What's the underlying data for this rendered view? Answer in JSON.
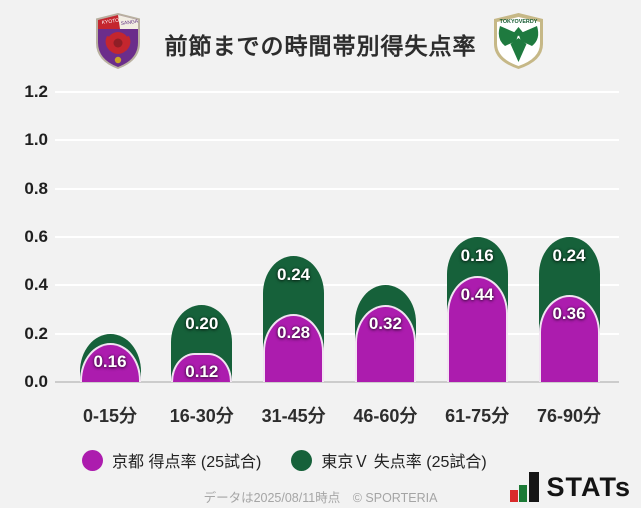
{
  "header": {
    "title": "前節までの時間帯別得失点率",
    "kyoto_logo": {
      "name": "京都サンガF.C.",
      "band_left_text": "KYOTO",
      "band_right_text": "SANGA"
    },
    "verdy_logo": {
      "name": "東京ヴェルディ",
      "banner_text": "TOKYOVERDY"
    }
  },
  "chart_data": {
    "type": "bar",
    "stacked": true,
    "title": "前節までの時間帯別得失点率",
    "categories": [
      "0-15分",
      "16-30分",
      "31-45分",
      "46-60分",
      "61-75分",
      "76-90分"
    ],
    "series": [
      {
        "name": "京都 得点率 (25試合)",
        "color": "#ac1cae",
        "values": [
          0.16,
          0.12,
          0.28,
          0.32,
          0.44,
          0.36
        ],
        "labels": [
          "0.16",
          "0.12",
          "0.28",
          "0.32",
          "0.44",
          "0.36"
        ]
      },
      {
        "name": "東京Ｖ 失点率 (25試合)",
        "color": "#16613a",
        "values": [
          0.04,
          0.2,
          0.24,
          0.08,
          0.16,
          0.24
        ],
        "labels": [
          "",
          "0.20",
          "0.24",
          "",
          "0.16",
          "0.24"
        ]
      }
    ],
    "stack_totals": [
      0.2,
      0.32,
      0.52,
      0.4,
      0.6,
      0.6
    ],
    "ylim": [
      0,
      1.2
    ],
    "yticks": [
      "0.0",
      "0.2",
      "0.4",
      "0.6",
      "0.8",
      "1.0",
      "1.2"
    ],
    "grid": true,
    "legend_position": "bottom"
  },
  "footer": {
    "note": "データは2025/08/11時点　© SPORTERIA",
    "brand": "STATs"
  }
}
